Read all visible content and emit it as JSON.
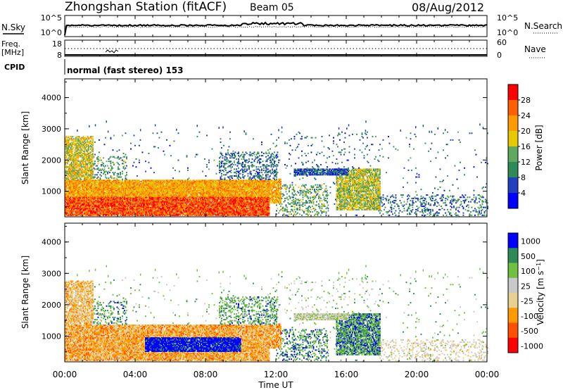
{
  "header": {
    "title": "Zhongshan Station (fitACF)",
    "beam": "Beam 05",
    "date": "08/Aug/2012"
  },
  "sky_panel": {
    "left_label": "N.Sky",
    "right_label": "N.Search",
    "left_ticks": [
      "10^5",
      "10^0"
    ],
    "right_ticks": [
      "10^5",
      "10^0"
    ]
  },
  "freq_panel": {
    "left_label_1": "Freq.",
    "left_label_2": "[MHz]",
    "left_ticks": [
      "18",
      "8"
    ],
    "right_label": "Nave",
    "right_ticks": [
      "60",
      "0"
    ]
  },
  "cpid": {
    "label": "CPID",
    "value": "normal (fast stereo) 153"
  },
  "colors": {
    "power_scale": [
      "#0000ff",
      "#2040c0",
      "#2e8b57",
      "#60a860",
      "#e8c800",
      "#ff9a00",
      "#ff6000",
      "#ff0000"
    ],
    "velocity_scale": [
      "#ff0000",
      "#ff5000",
      "#ff9a00",
      "#e8d090",
      "#c8c8c8",
      "#70c040",
      "#2e8b57",
      "#0000ff"
    ]
  },
  "chart_data": [
    {
      "type": "heatmap",
      "title": "",
      "xlabel": "",
      "ylabel": "Slant Range [km]",
      "x_range": [
        "00:00",
        "24:00"
      ],
      "ylim": [
        180,
        4600
      ],
      "y_ticks": [
        1000,
        2000,
        3000,
        4000
      ],
      "colorbar": {
        "label": "Power [dB]",
        "ticks": [
          "4",
          "8",
          "12",
          "16",
          "20",
          "24",
          "28"
        ],
        "range": [
          0,
          32
        ]
      },
      "description_regions": [
        {
          "t_start": 0.0,
          "t_end": 11.5,
          "r_start": 200,
          "r_end": 1300,
          "level": "high"
        },
        {
          "t_start": 0.0,
          "t_end": 1.5,
          "r_start": 1300,
          "r_end": 2700,
          "level": "mid"
        },
        {
          "t_start": 8.8,
          "t_end": 12.0,
          "r_start": 1400,
          "r_end": 2200,
          "level": "low"
        },
        {
          "t_start": 13.0,
          "t_end": 16.0,
          "r_start": 1500,
          "r_end": 1700,
          "level": "low"
        },
        {
          "t_start": 15.5,
          "t_end": 18.0,
          "r_start": 400,
          "r_end": 1700,
          "level": "mid"
        },
        {
          "t_start": 18.5,
          "t_end": 24.0,
          "r_start": 200,
          "r_end": 900,
          "level": "low"
        }
      ]
    },
    {
      "type": "heatmap",
      "title": "",
      "xlabel": "Time UT",
      "ylabel": "Slant Range [km]",
      "x_range": [
        "00:00",
        "24:00"
      ],
      "x_ticks": [
        "00:00",
        "04:00",
        "08:00",
        "12:00",
        "16:00",
        "20:00",
        "00:00"
      ],
      "ylim": [
        180,
        4600
      ],
      "y_ticks": [
        1000,
        2000,
        3000,
        4000
      ],
      "colorbar": {
        "label": "Velocity [m s^-1]",
        "ticks": [
          "1000",
          "500",
          "100",
          "25",
          "-25",
          "-100",
          "-500",
          "-1000"
        ]
      }
    }
  ]
}
